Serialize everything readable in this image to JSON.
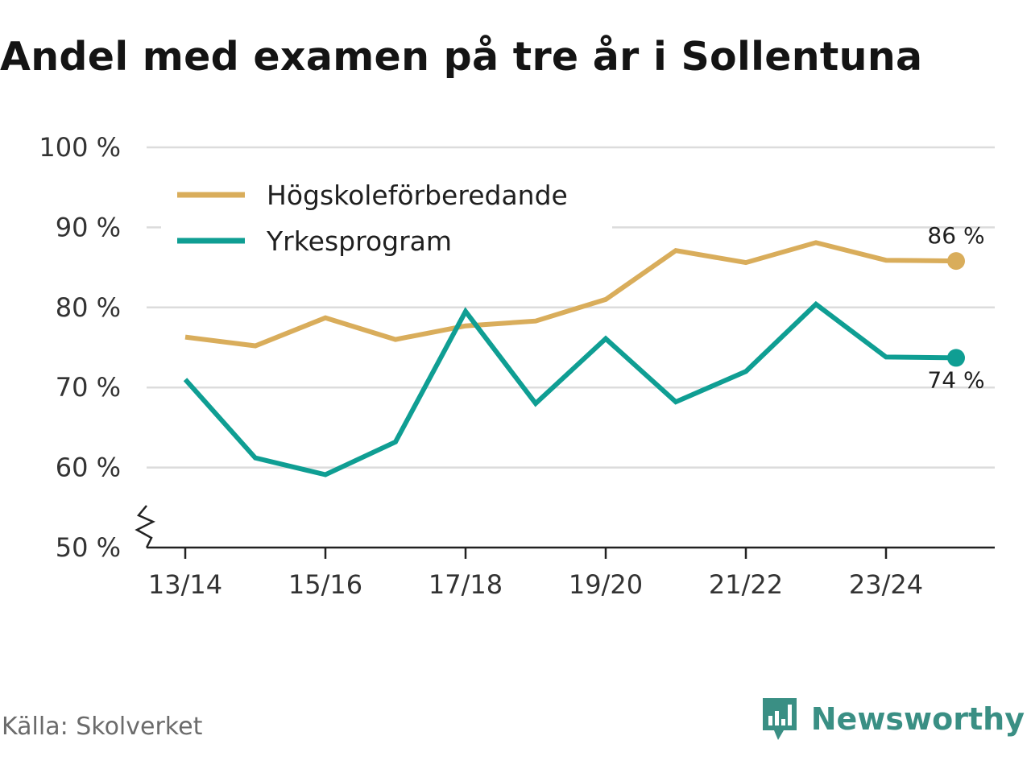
{
  "colors": {
    "series_a": "#d9ad5b",
    "series_b": "#0f9e93",
    "grid": "#dcdcdc",
    "axis": "#222222",
    "brand": "#3a8f84"
  },
  "footer": {
    "source": "Källa: Skolverket",
    "brand_name": "Newsworthy",
    "brand_icon": "newsworthy-logo-icon"
  },
  "chart_data": {
    "type": "line",
    "title": "Andel med examen på tre år i Sollentuna",
    "xlabel": "",
    "ylabel": "",
    "ylim": [
      50,
      100
    ],
    "y_ticks": [
      50,
      60,
      70,
      80,
      90,
      100
    ],
    "y_tick_labels": [
      "50 %",
      "60 %",
      "70 %",
      "80 %",
      "90 %",
      "100 %"
    ],
    "axis_break": true,
    "grid": true,
    "legend_position": "top-left",
    "categories": [
      "13/14",
      "14/15",
      "15/16",
      "16/17",
      "17/18",
      "18/19",
      "19/20",
      "20/21",
      "21/22",
      "22/23",
      "23/24",
      "24/25"
    ],
    "x_tick_labels": [
      "13/14",
      "15/16",
      "17/18",
      "19/20",
      "21/22",
      "23/24"
    ],
    "series": [
      {
        "name": "Högskoleförberedande",
        "values": [
          76.3,
          75.2,
          78.7,
          76.0,
          77.7,
          78.3,
          81.0,
          87.1,
          85.6,
          88.1,
          85.9,
          85.8
        ],
        "end_label": "86 %"
      },
      {
        "name": "Yrkesprogram",
        "values": [
          71.0,
          61.2,
          59.1,
          63.2,
          79.5,
          68.0,
          76.1,
          68.2,
          72.0,
          80.4,
          73.8,
          73.7
        ],
        "end_label": "74 %"
      }
    ]
  }
}
